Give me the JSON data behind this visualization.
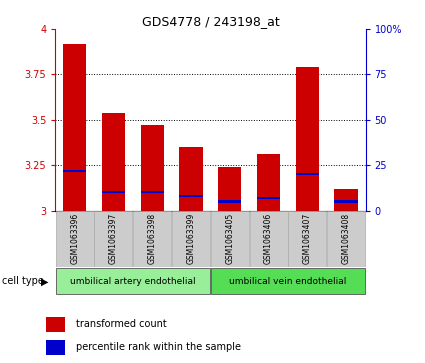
{
  "title": "GDS4778 / 243198_at",
  "samples": [
    "GSM1063396",
    "GSM1063397",
    "GSM1063398",
    "GSM1063399",
    "GSM1063405",
    "GSM1063406",
    "GSM1063407",
    "GSM1063408"
  ],
  "transformed_counts": [
    3.92,
    3.54,
    3.47,
    3.35,
    3.24,
    3.31,
    3.79,
    3.12
  ],
  "percentile_ranks": [
    22,
    10,
    10,
    8,
    5,
    7,
    20,
    5
  ],
  "ylim_left": [
    3.0,
    4.0
  ],
  "ylim_right": [
    0,
    100
  ],
  "yticks_left": [
    3.0,
    3.25,
    3.5,
    3.75,
    4.0
  ],
  "yticks_right": [
    0,
    25,
    50,
    75,
    100
  ],
  "ytick_labels_left": [
    "3",
    "3.25",
    "3.5",
    "3.75",
    "4"
  ],
  "ytick_labels_right": [
    "0",
    "25",
    "50",
    "75",
    "100%"
  ],
  "bar_color_red": "#cc0000",
  "bar_color_blue": "#0000cc",
  "bar_width": 0.6,
  "cell_type_groups": [
    {
      "label": "umbilical artery endothelial",
      "indices": [
        0,
        1,
        2,
        3
      ],
      "color": "#99ee99"
    },
    {
      "label": "umbilical vein endothelial",
      "indices": [
        4,
        5,
        6,
        7
      ],
      "color": "#55dd55"
    }
  ],
  "legend_red_label": "transformed count",
  "legend_blue_label": "percentile rank within the sample",
  "cell_type_label": "cell type",
  "sample_box_color": "#cccccc",
  "sample_box_edge": "#aaaaaa"
}
